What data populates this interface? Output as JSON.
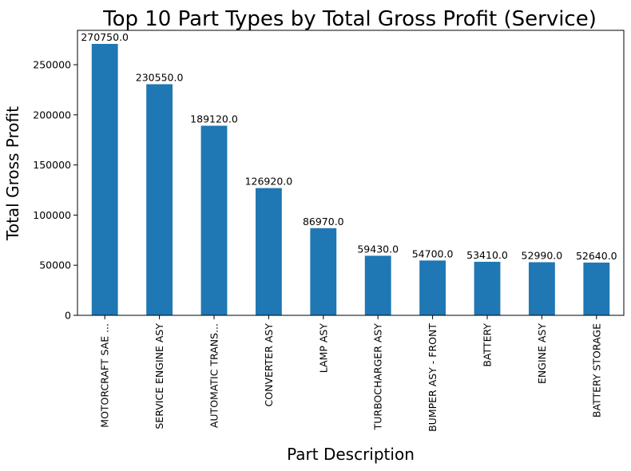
{
  "chart_data": {
    "type": "bar",
    "title": "Top 10 Part Types by Total Gross Profit (Service)",
    "xlabel": "Part Description",
    "ylabel": "Total Gross Profit",
    "categories": [
      "MOTORCRAFT SAE ...",
      "SERVICE ENGINE ASY",
      "AUTOMATIC TRANS...",
      "CONVERTER ASY",
      "LAMP ASY",
      "TURBOCHARGER ASY",
      "BUMPER ASY - FRONT",
      "BATTERY",
      "ENGINE ASY",
      "BATTERY STORAGE"
    ],
    "values": [
      270750.0,
      230550.0,
      189120.0,
      126920.0,
      86970.0,
      59430.0,
      54700.0,
      53410.0,
      52990.0,
      52640.0
    ],
    "data_labels": [
      "270750.0",
      "230550.0",
      "189120.0",
      "126920.0",
      "86970.0",
      "59430.0",
      "54700.0",
      "53410.0",
      "52990.0",
      "52640.0"
    ],
    "yticks": [
      0,
      50000,
      100000,
      150000,
      200000,
      250000
    ],
    "ylim": [
      0,
      284288
    ],
    "grid": false,
    "bar_color": "#1f77b4"
  }
}
